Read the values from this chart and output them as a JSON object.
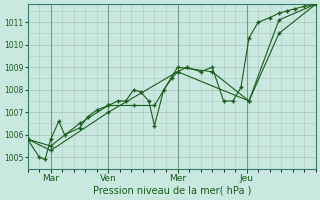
{
  "xlabel": "Pression niveau de la mer( hPa )",
  "bg_color": "#c8e8e0",
  "grid_color": "#b0c8c0",
  "line_color": "#1a5c1a",
  "ylim": [
    1004.5,
    1011.8
  ],
  "yticks": [
    1005,
    1006,
    1007,
    1008,
    1009,
    1010,
    1011
  ],
  "x_tick_labels": [
    "Mar",
    "Ven",
    "Mer",
    "Jeu"
  ],
  "x_tick_positions": [
    2,
    7,
    13,
    19
  ],
  "xlim": [
    0,
    25
  ],
  "vline_positions": [
    2,
    7,
    13,
    19
  ],
  "series1_x": [
    0,
    1,
    1.5,
    2,
    2.7,
    3.2,
    4.5,
    5.2,
    6.0,
    7.0,
    7.8,
    8.5,
    9.2,
    9.8,
    10.5,
    11.0,
    11.8,
    12.5,
    13.0,
    13.8,
    15.0,
    16.0,
    17.0,
    17.8,
    18.5,
    19.2,
    20.0,
    21.0,
    21.8,
    22.5,
    23.2,
    24.0,
    25.0
  ],
  "series1_y": [
    1005.8,
    1005.0,
    1004.9,
    1005.8,
    1006.6,
    1006.0,
    1006.3,
    1006.8,
    1007.1,
    1007.3,
    1007.5,
    1007.5,
    1008.0,
    1007.9,
    1007.5,
    1006.4,
    1008.0,
    1008.5,
    1008.8,
    1009.0,
    1008.8,
    1009.0,
    1007.5,
    1007.5,
    1008.1,
    1010.3,
    1011.0,
    1011.2,
    1011.4,
    1011.5,
    1011.6,
    1011.7,
    1011.8
  ],
  "series2_x": [
    0,
    2,
    4.5,
    7,
    9.2,
    11.0,
    13.0,
    16.0,
    19.2,
    21.8,
    25.0
  ],
  "series2_y": [
    1005.8,
    1005.5,
    1006.5,
    1007.3,
    1007.3,
    1007.3,
    1009.0,
    1008.8,
    1007.5,
    1011.1,
    1011.8
  ],
  "series3_x": [
    0,
    2,
    7,
    13,
    19.2,
    21.8,
    25.0
  ],
  "series3_y": [
    1005.8,
    1005.3,
    1007.0,
    1008.8,
    1007.5,
    1010.5,
    1011.8
  ]
}
